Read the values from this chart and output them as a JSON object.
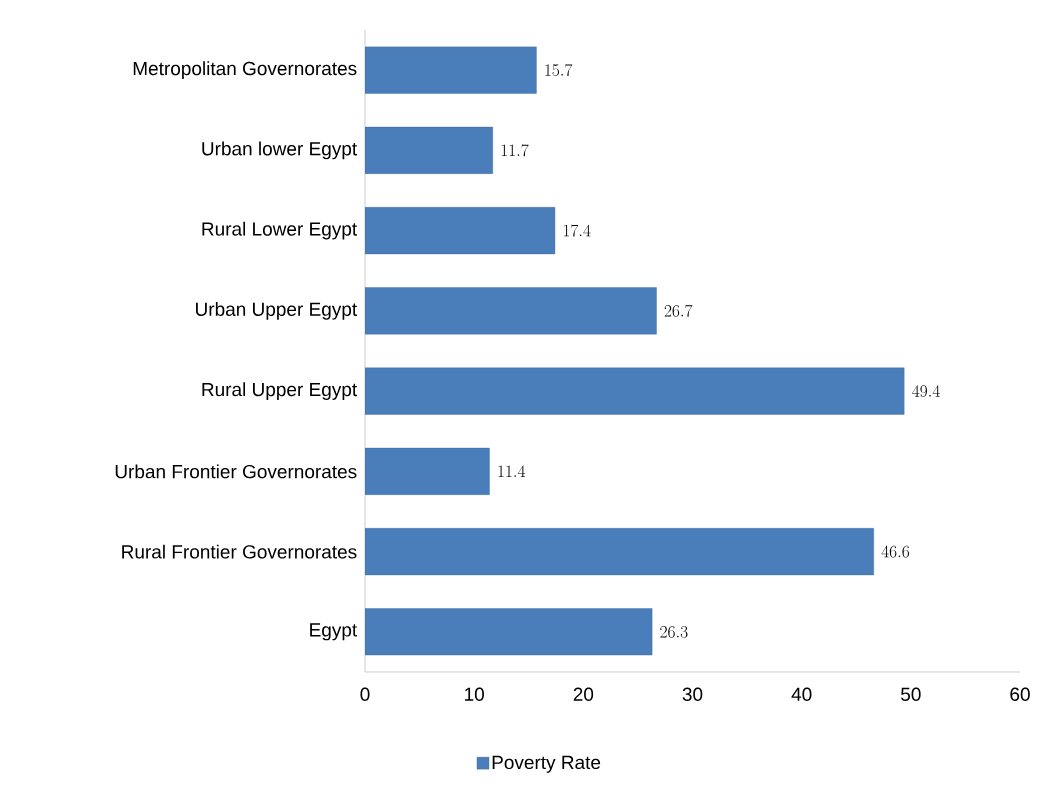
{
  "chart_data": {
    "type": "bar",
    "orientation": "horizontal",
    "categories": [
      "Metropolitan Governorates",
      "Urban lower Egypt",
      "Rural Lower Egypt",
      "Urban Upper Egypt",
      "Rural Upper Egypt",
      "Urban Frontier Governorates",
      "Rural Frontier Governorates",
      "Egypt"
    ],
    "series": [
      {
        "name": "Poverty Rate",
        "color": "#4a7ebb",
        "values": [
          15.7,
          11.7,
          17.4,
          26.7,
          49.4,
          11.4,
          46.6,
          26.3
        ]
      }
    ],
    "xlim": [
      0,
      60
    ],
    "xticks": [
      0,
      10,
      20,
      30,
      40,
      50,
      60
    ],
    "data_labels": true,
    "grid": false,
    "legend": "bottom"
  }
}
